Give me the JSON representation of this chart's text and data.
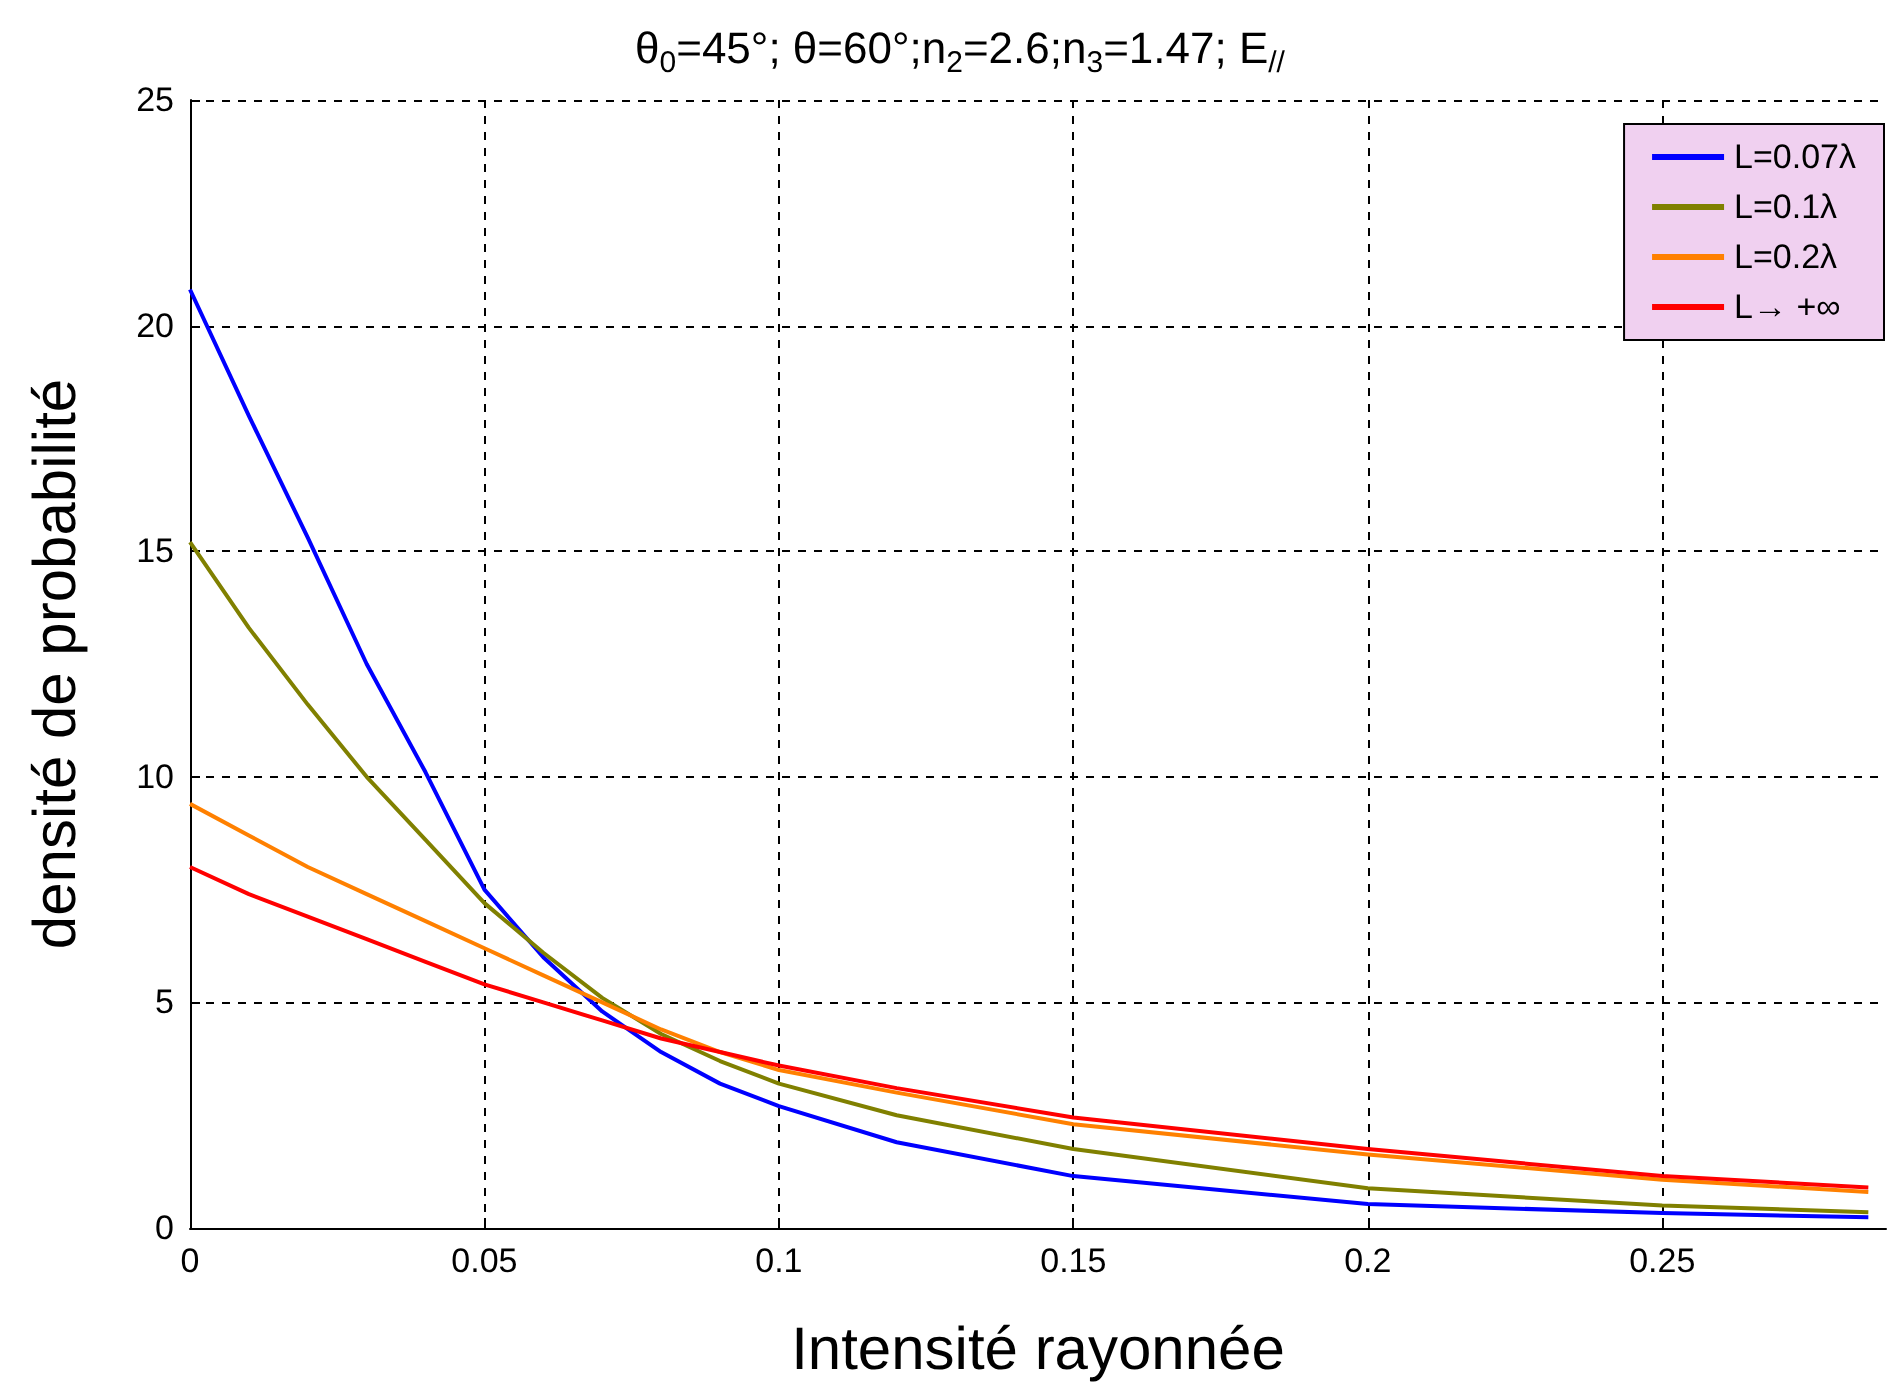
{
  "chart_data": {
    "type": "line",
    "title": "θ$_{0}$=45°; θ=60°;n$_{2}$=2.6;n$_{3}$=1.47; E$_{//}$",
    "xlabel": "Intensité rayonnée",
    "ylabel": "densité de probabilité",
    "x": [
      0,
      0.01,
      0.02,
      0.03,
      0.04,
      0.05,
      0.06,
      0.07,
      0.08,
      0.09,
      0.1,
      0.12,
      0.15,
      0.2,
      0.25,
      0.285
    ],
    "series": [
      {
        "name": "L=0.07λ",
        "color": "#0000ff",
        "values": [
          20.8,
          18,
          15.3,
          12.5,
          10.1,
          7.5,
          6,
          4.8,
          3.9,
          3.2,
          2.7,
          1.9,
          1.15,
          0.53,
          0.33,
          0.24
        ]
      },
      {
        "name": "L=0.1λ",
        "color": "#808000",
        "values": [
          15.2,
          13.3,
          11.6,
          10,
          8.6,
          7.2,
          6.1,
          5.1,
          4.3,
          3.7,
          3.2,
          2.5,
          1.75,
          0.88,
          0.5,
          0.35
        ]
      },
      {
        "name": "L=0.2λ",
        "color": "#ff8000",
        "values": [
          9.4,
          8.7,
          8,
          7.4,
          6.8,
          6.2,
          5.6,
          5,
          4.4,
          3.9,
          3.5,
          3,
          2.3,
          1.63,
          1.07,
          0.8
        ]
      },
      {
        "name": "L→ +∞",
        "color": "#ff0000",
        "values": [
          8,
          7.4,
          6.9,
          6.4,
          5.9,
          5.4,
          5,
          4.6,
          4.2,
          3.9,
          3.6,
          3.1,
          2.45,
          1.75,
          1.15,
          0.9
        ]
      }
    ],
    "xlim": [
      0,
      0.288
    ],
    "ylim": [
      0,
      25
    ],
    "xticks": [
      0,
      0.05,
      0.1,
      0.15,
      0.2,
      0.25
    ],
    "yticks": [
      0,
      5,
      10,
      15,
      20,
      25
    ],
    "grid": true,
    "legend": "top right",
    "marker": "none",
    "line_style": "solid"
  }
}
